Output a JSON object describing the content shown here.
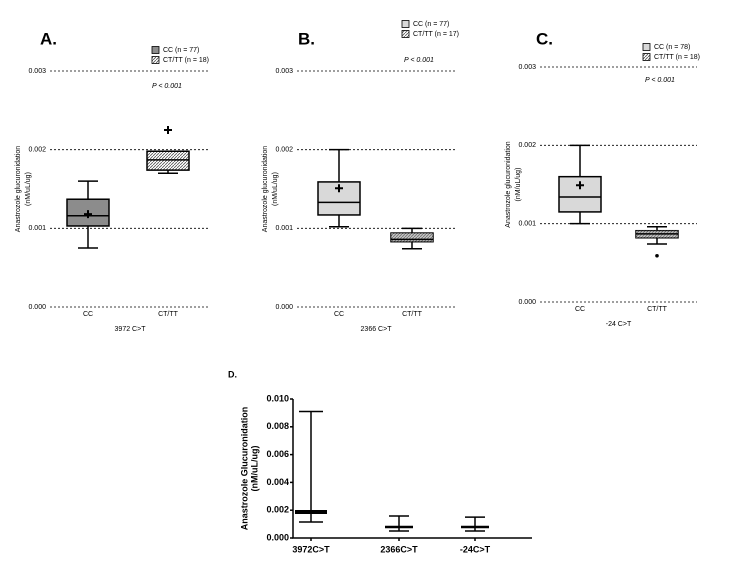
{
  "chart_data": [
    {
      "type": "box",
      "panel_label": "A.",
      "annotation": "P < 0.001",
      "y_label": [
        "Anastrozole glucuronidation",
        "(nM/uL/ug)"
      ],
      "x_label": "3972 C>T",
      "categories": [
        "CC",
        "CT/TT"
      ],
      "ylim": [
        0,
        0.003
      ],
      "yticks": [
        {
          "value": 0,
          "label": "0.000"
        },
        {
          "value": 0.001,
          "label": "0.001"
        },
        {
          "value": 0.002,
          "label": "0.002"
        },
        {
          "value": 0.003,
          "label": "0.003"
        }
      ],
      "grid": true,
      "series": [
        {
          "name": "CC (n = 77)",
          "color": "#8c8c8c",
          "whisker_low": 0.00075,
          "q1": 0.00103,
          "median": 0.00116,
          "q3": 0.00137,
          "whisker_high": 0.0016,
          "mean": 0.00118
        },
        {
          "name": "CT/TT (n = 18)",
          "color": "#d4d4d4",
          "whisker_low": 0.0017,
          "q1": 0.00174,
          "median": 0.00187,
          "q3": 0.00198,
          "whisker_high": 0.00198,
          "mean": 0.00225
        }
      ]
    },
    {
      "type": "box",
      "panel_label": "B.",
      "annotation": "P < 0.001",
      "y_label": [
        "Anastrozole glucuronidation",
        "(nM/uL/ug)"
      ],
      "x_label": "2366 C>T",
      "categories": [
        "CC",
        "CT/TT"
      ],
      "ylim": [
        0,
        0.003
      ],
      "yticks": [
        {
          "value": 0,
          "label": "0.000"
        },
        {
          "value": 0.001,
          "label": "0.001"
        },
        {
          "value": 0.002,
          "label": "0.002"
        },
        {
          "value": 0.003,
          "label": "0.003"
        }
      ],
      "grid": true,
      "series": [
        {
          "name": "CC (n = 77)",
          "color": "#d9d9d9",
          "whisker_low": 0.00102,
          "q1": 0.00117,
          "median": 0.00133,
          "q3": 0.00159,
          "whisker_high": 0.002,
          "mean": 0.00151
        },
        {
          "name": "CT/TT (n = 17)",
          "color": "#8a8a8a",
          "whisker_low": 0.00074,
          "q1": 0.00083,
          "median": 0.00086,
          "q3": 0.00094,
          "whisker_high": 0.001
        }
      ]
    },
    {
      "type": "box",
      "panel_label": "C.",
      "annotation": "P < 0.001",
      "y_label": [
        "Anastrozole glucuronidation",
        "(nM/uL/ug)"
      ],
      "x_label": "-24 C>T",
      "categories": [
        "CC",
        "CT/TT"
      ],
      "ylim": [
        0,
        0.003
      ],
      "yticks": [
        {
          "value": 0,
          "label": "0.000"
        },
        {
          "value": 0.001,
          "label": "0.001"
        },
        {
          "value": 0.002,
          "label": "0.002"
        },
        {
          "value": 0.003,
          "label": "0.003"
        }
      ],
      "grid": true,
      "series": [
        {
          "name": "CC (n = 78)",
          "color": "#d9d9d9",
          "whisker_low": 0.001,
          "q1": 0.00115,
          "median": 0.00134,
          "q3": 0.0016,
          "whisker_high": 0.002,
          "mean": 0.00149
        },
        {
          "name": "CT/TT (n = 18)",
          "color": "#8a8a8a",
          "whisker_low": 0.00074,
          "q1": 0.00082,
          "median": 0.00087,
          "q3": 0.00091,
          "whisker_high": 0.00096,
          "outliers": [
            0.00059
          ]
        }
      ]
    },
    {
      "type": "range",
      "panel_label": "D.",
      "y_label": [
        "Anastrozole Glucuronidation",
        "(nM/uL/ug)"
      ],
      "categories": [
        "3972C>T",
        "2366C>T",
        "-24C>T"
      ],
      "ylim": [
        0,
        0.01
      ],
      "yticks": [
        {
          "value": 0,
          "label": "0.000"
        },
        {
          "value": 0.002,
          "label": "0.002"
        },
        {
          "value": 0.004,
          "label": "0.004"
        },
        {
          "value": 0.006,
          "label": "0.006"
        },
        {
          "value": 0.008,
          "label": "0.008"
        },
        {
          "value": 0.01,
          "label": "0.010"
        }
      ],
      "low": [
        0.00115,
        0.0005,
        0.0005
      ],
      "mid": [
        0.00187,
        0.00079,
        0.00079
      ],
      "high": [
        0.0091,
        0.00158,
        0.0015
      ]
    }
  ]
}
